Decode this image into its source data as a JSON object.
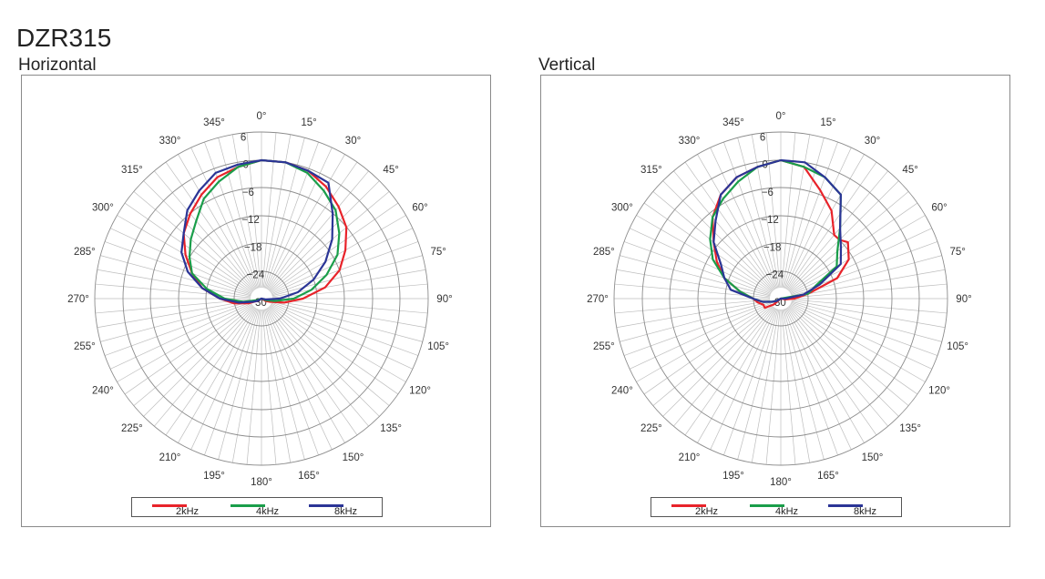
{
  "title": "DZR315",
  "chart_data": [
    {
      "type": "polar",
      "title": "Horizontal",
      "angle_labels": [
        "0°",
        "15°",
        "30°",
        "45°",
        "60°",
        "75°",
        "90°",
        "105°",
        "120°",
        "135°",
        "150°",
        "165°",
        "180°",
        "195°",
        "210°",
        "225°",
        "240°",
        "255°",
        "270°",
        "285°",
        "300°",
        "315°",
        "330°",
        "345°"
      ],
      "radial_labels": [
        "6",
        "0",
        "−6",
        "−12",
        "−18",
        "−24",
        "−30"
      ],
      "r_range": [
        -30,
        6
      ],
      "series": [
        {
          "name": "2kHz",
          "color": "#e8232a",
          "angles": [
            0,
            10,
            20,
            30,
            40,
            50,
            60,
            70,
            80,
            90,
            100,
            110,
            120,
            130,
            140,
            150,
            160,
            170,
            180,
            190,
            200,
            210,
            220,
            230,
            240,
            250,
            260,
            270,
            280,
            290,
            300,
            310,
            320,
            330,
            340,
            350
          ],
          "values": [
            0,
            0,
            -0.5,
            -2,
            -4,
            -6,
            -9,
            -12,
            -16,
            -21,
            -25,
            -28,
            -29,
            -30,
            -31,
            -30,
            -31,
            -30,
            -31,
            -31,
            -30,
            -31,
            -31,
            -30,
            -29,
            -27,
            -24,
            -21,
            -17,
            -14,
            -11,
            -8,
            -6,
            -4,
            -2,
            -1
          ]
        },
        {
          "name": "4kHz",
          "color": "#1a9e4a",
          "angles": [
            0,
            10,
            20,
            30,
            40,
            50,
            60,
            70,
            80,
            90,
            100,
            110,
            120,
            130,
            140,
            150,
            160,
            170,
            180,
            190,
            200,
            210,
            220,
            230,
            240,
            250,
            260,
            270,
            280,
            290,
            300,
            310,
            320,
            330,
            340,
            350
          ],
          "values": [
            0,
            0,
            -1,
            -3,
            -5,
            -8,
            -11,
            -15,
            -19,
            -23,
            -27,
            -29,
            -30,
            -30,
            -30,
            -30,
            -30,
            -30,
            -30,
            -30,
            -30,
            -30,
            -30,
            -30,
            -30,
            -29,
            -26,
            -22,
            -18,
            -14,
            -12,
            -10,
            -8,
            -5,
            -3,
            -1
          ]
        },
        {
          "name": "8kHz",
          "color": "#2b3596",
          "angles": [
            0,
            10,
            20,
            30,
            40,
            50,
            60,
            70,
            80,
            90,
            100,
            110,
            120,
            130,
            140,
            150,
            160,
            170,
            180,
            190,
            200,
            210,
            220,
            230,
            240,
            250,
            260,
            270,
            280,
            290,
            300,
            310,
            320,
            330,
            340,
            350
          ],
          "values": [
            0,
            0,
            -0.5,
            -1,
            -6,
            -10,
            -14,
            -18,
            -22,
            -26,
            -29,
            -30,
            -30,
            -30,
            -30,
            -30,
            -30,
            -30,
            -30,
            -30,
            -30,
            -30,
            -30,
            -30,
            -29,
            -28,
            -25,
            -21,
            -17,
            -13,
            -10,
            -8,
            -5,
            -3,
            -1,
            -0.5
          ]
        }
      ],
      "legend": [
        "2kHz",
        "4kHz",
        "8kHz"
      ]
    },
    {
      "type": "polar",
      "title": "Vertical",
      "angle_labels": [
        "0°",
        "15°",
        "30°",
        "45°",
        "60°",
        "75°",
        "90°",
        "105°",
        "120°",
        "135°",
        "150°",
        "165°",
        "180°",
        "195°",
        "210°",
        "225°",
        "240°",
        "255°",
        "270°",
        "285°",
        "300°",
        "315°",
        "330°",
        "345°"
      ],
      "radial_labels": [
        "6",
        "0",
        "−6",
        "−12",
        "−18",
        "−24",
        "−30"
      ],
      "r_range": [
        -30,
        6
      ],
      "series": [
        {
          "name": "2kHz",
          "color": "#e8232a",
          "angles": [
            0,
            10,
            20,
            30,
            40,
            45,
            50,
            60,
            70,
            80,
            90,
            100,
            110,
            120,
            130,
            140,
            150,
            160,
            170,
            180,
            190,
            200,
            210,
            220,
            230,
            240,
            250,
            260,
            270,
            280,
            290,
            300,
            310,
            320,
            330,
            340,
            350
          ],
          "values": [
            0,
            -1,
            -5,
            -8,
            -12,
            -12,
            -11,
            -13,
            -17,
            -24,
            -27,
            -29,
            -30,
            -30,
            -30,
            -30,
            -31,
            -31,
            -33,
            -35,
            -37,
            -35,
            -32,
            -30,
            -28,
            -26,
            -26,
            -25,
            -24,
            -21,
            -17,
            -14,
            -11,
            -7,
            -4,
            -2,
            -1
          ]
        },
        {
          "name": "4kHz",
          "color": "#1a9e4a",
          "angles": [
            0,
            10,
            20,
            30,
            40,
            50,
            60,
            70,
            80,
            90,
            100,
            110,
            120,
            130,
            140,
            150,
            160,
            170,
            180,
            190,
            200,
            210,
            220,
            230,
            240,
            250,
            260,
            270,
            280,
            290,
            300,
            310,
            320,
            330,
            340,
            350
          ],
          "values": [
            0,
            -1,
            -2,
            -4,
            -10,
            -14,
            -16,
            -22,
            -24,
            -30,
            -30,
            -30,
            -30,
            -30,
            -30,
            -30,
            -30,
            -30,
            -30,
            -30,
            -30,
            -30,
            -30,
            -30,
            -29,
            -28,
            -26,
            -24,
            -21,
            -17,
            -13,
            -10,
            -7,
            -5,
            -3,
            -1
          ]
        },
        {
          "name": "8kHz",
          "color": "#2b3596",
          "angles": [
            0,
            10,
            20,
            30,
            40,
            50,
            60,
            70,
            80,
            90,
            100,
            110,
            120,
            130,
            140,
            150,
            160,
            170,
            180,
            190,
            200,
            210,
            220,
            230,
            240,
            250,
            260,
            270,
            280,
            290,
            300,
            310,
            320,
            330,
            340,
            350
          ],
          "values": [
            0,
            0,
            -2,
            -4,
            -10,
            -13,
            -15,
            -21,
            -25,
            -29,
            -30,
            -30,
            -30,
            -30,
            -30,
            -30,
            -30,
            -30,
            -30,
            -30,
            -30,
            -30,
            -30,
            -30,
            -29,
            -28,
            -26,
            -24,
            -19,
            -17,
            -15,
            -11,
            -8,
            -4,
            -2,
            -1
          ]
        }
      ],
      "legend": [
        "2kHz",
        "4kHz",
        "8kHz"
      ]
    }
  ]
}
